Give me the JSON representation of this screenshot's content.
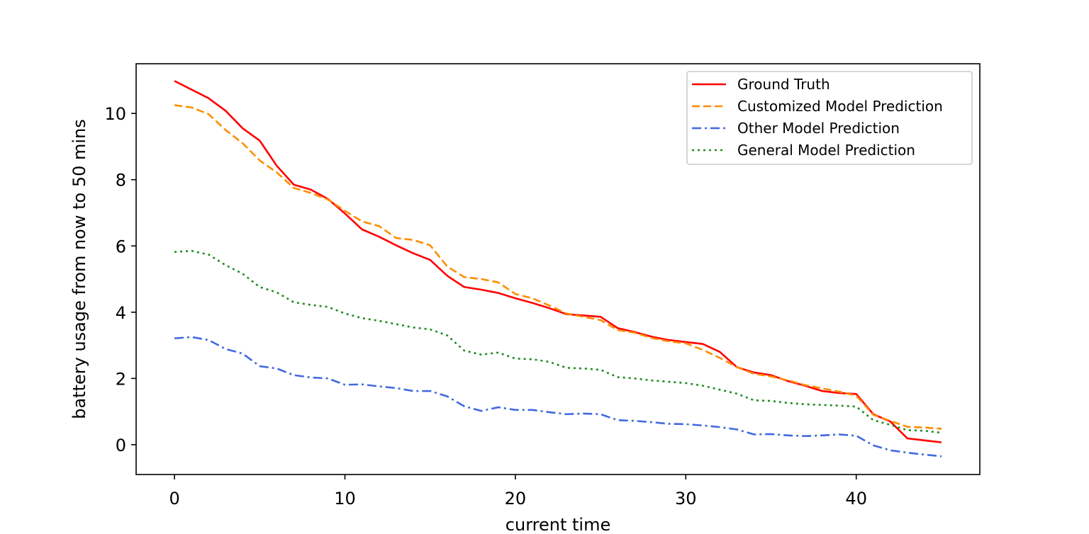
{
  "chart_data": {
    "type": "line",
    "title": "",
    "xlabel": "current time",
    "ylabel": "battery usage from now to 50 mins",
    "xlim": [
      -2.25,
      47.25
    ],
    "ylim": [
      -0.9,
      11.5
    ],
    "xticks": [
      0,
      10,
      20,
      30,
      40
    ],
    "yticks": [
      0,
      2,
      4,
      6,
      8,
      10
    ],
    "grid": false,
    "legend_position": "top-right",
    "x": [
      0,
      1,
      2,
      3,
      4,
      5,
      6,
      7,
      8,
      9,
      10,
      11,
      12,
      13,
      14,
      15,
      16,
      17,
      18,
      19,
      20,
      21,
      22,
      23,
      24,
      25,
      26,
      27,
      28,
      29,
      30,
      31,
      32,
      33,
      34,
      35,
      36,
      37,
      38,
      39,
      40,
      41,
      42,
      43,
      44,
      45
    ],
    "series": [
      {
        "name": "Ground Truth",
        "color": "#ff0000",
        "style": "solid",
        "values": [
          10.98,
          10.72,
          10.46,
          10.08,
          9.55,
          9.18,
          8.42,
          7.85,
          7.7,
          7.42,
          6.98,
          6.5,
          6.28,
          6.02,
          5.78,
          5.58,
          5.1,
          4.76,
          4.68,
          4.58,
          4.42,
          4.28,
          4.12,
          3.94,
          3.9,
          3.86,
          3.52,
          3.4,
          3.26,
          3.16,
          3.1,
          3.04,
          2.8,
          2.34,
          2.18,
          2.1,
          1.92,
          1.78,
          1.62,
          1.56,
          1.53,
          0.92,
          0.7,
          0.19,
          0.13,
          0.07
        ]
      },
      {
        "name": "Customized Model Prediction",
        "color": "#ff8c00",
        "style": "dashed",
        "values": [
          10.25,
          10.18,
          9.98,
          9.5,
          9.1,
          8.58,
          8.22,
          7.75,
          7.6,
          7.4,
          7.06,
          6.74,
          6.6,
          6.24,
          6.18,
          6.02,
          5.38,
          5.06,
          5.0,
          4.9,
          4.55,
          4.42,
          4.2,
          3.96,
          3.86,
          3.76,
          3.46,
          3.38,
          3.22,
          3.12,
          3.06,
          2.86,
          2.62,
          2.34,
          2.14,
          2.06,
          1.94,
          1.8,
          1.7,
          1.6,
          1.48,
          0.9,
          0.72,
          0.54,
          0.52,
          0.48
        ]
      },
      {
        "name": "Other Model Prediction",
        "color": "#4169e1",
        "style": "dashdot",
        "values": [
          3.21,
          3.25,
          3.16,
          2.89,
          2.75,
          2.37,
          2.3,
          2.1,
          2.03,
          2.0,
          1.81,
          1.82,
          1.76,
          1.71,
          1.62,
          1.62,
          1.46,
          1.16,
          1.02,
          1.13,
          1.05,
          1.05,
          0.98,
          0.92,
          0.94,
          0.92,
          0.74,
          0.72,
          0.68,
          0.63,
          0.62,
          0.58,
          0.53,
          0.46,
          0.31,
          0.32,
          0.28,
          0.26,
          0.28,
          0.31,
          0.27,
          -0.02,
          -0.17,
          -0.24,
          -0.3,
          -0.35
        ]
      },
      {
        "name": "General Model Prediction",
        "color": "#228b22",
        "style": "dotted",
        "values": [
          5.82,
          5.85,
          5.74,
          5.42,
          5.16,
          4.76,
          4.6,
          4.3,
          4.22,
          4.16,
          3.96,
          3.82,
          3.74,
          3.64,
          3.54,
          3.48,
          3.3,
          2.84,
          2.72,
          2.78,
          2.6,
          2.58,
          2.5,
          2.32,
          2.3,
          2.26,
          2.04,
          2.0,
          1.94,
          1.9,
          1.86,
          1.78,
          1.66,
          1.54,
          1.34,
          1.32,
          1.26,
          1.22,
          1.2,
          1.18,
          1.15,
          0.74,
          0.6,
          0.44,
          0.42,
          0.36
        ]
      }
    ]
  }
}
